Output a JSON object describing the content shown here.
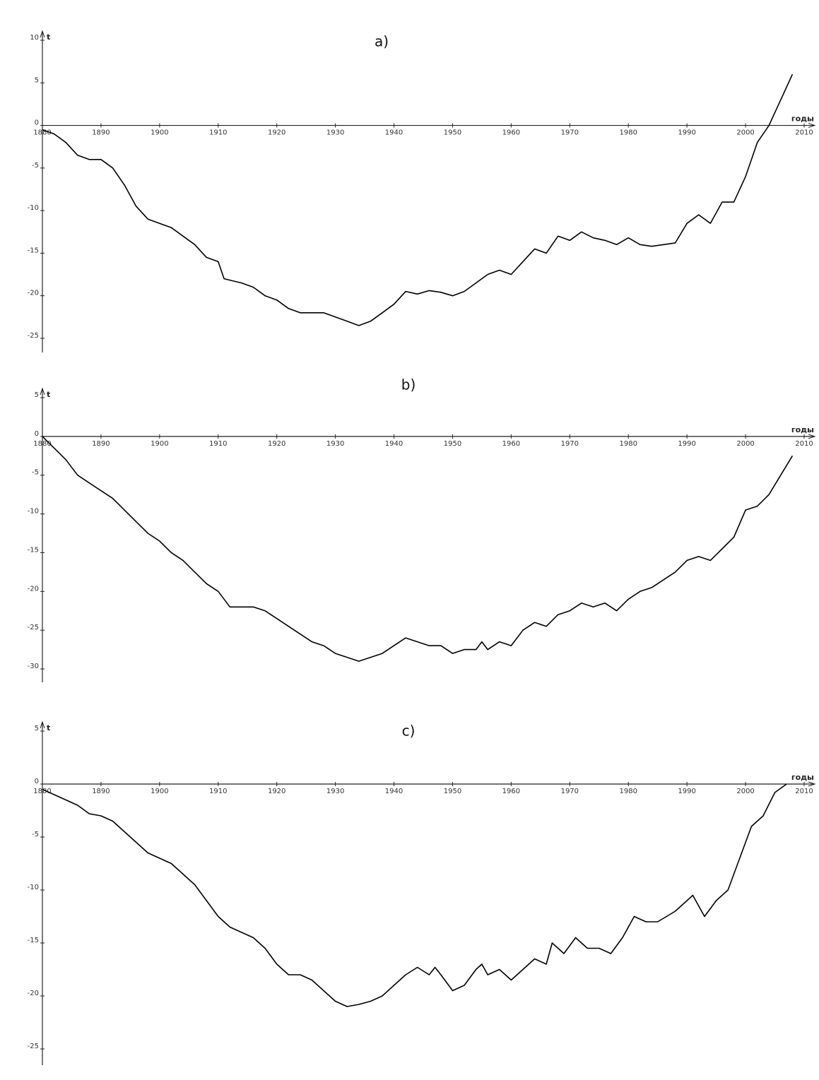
{
  "chart_data": [
    {
      "type": "line",
      "title": "a)",
      "xlabel": "годы",
      "ylabel": "t",
      "color": "#000000",
      "xlim": [
        1880,
        2010
      ],
      "xticks": [
        1880,
        1890,
        1900,
        1910,
        1920,
        1930,
        1940,
        1950,
        1960,
        1970,
        1980,
        1990,
        2000,
        2010
      ],
      "ylim": [
        -26,
        10
      ],
      "yticks": [
        10,
        5,
        0,
        -5,
        -10,
        -15,
        -20,
        -25
      ],
      "x": [
        1880,
        1882,
        1884,
        1886,
        1888,
        1890,
        1892,
        1894,
        1896,
        1898,
        1900,
        1902,
        1904,
        1906,
        1908,
        1910,
        1911,
        1914,
        1916,
        1918,
        1920,
        1922,
        1924,
        1926,
        1928,
        1930,
        1932,
        1934,
        1936,
        1938,
        1940,
        1942,
        1944,
        1946,
        1948,
        1950,
        1952,
        1954,
        1956,
        1958,
        1960,
        1962,
        1964,
        1966,
        1968,
        1970,
        1972,
        1974,
        1976,
        1978,
        1980,
        1982,
        1984,
        1986,
        1988,
        1990,
        1992,
        1994,
        1996,
        1998,
        2000,
        2002,
        2004,
        2006,
        2008
      ],
      "values": [
        -0.5,
        -1,
        -2,
        -3.5,
        -4,
        -4,
        -5,
        -7,
        -9.5,
        -11,
        -11.5,
        -12,
        -13,
        -14,
        -15.5,
        -16,
        -18,
        -18.5,
        -19,
        -20,
        -20.5,
        -21.5,
        -22,
        -22,
        -22,
        -22.5,
        -23,
        -23.5,
        -23,
        -22,
        -21,
        -19.5,
        -19.8,
        -19.4,
        -19.6,
        -20,
        -19.5,
        -18.5,
        -17.5,
        -17,
        -17.5,
        -16,
        -14.5,
        -15,
        -13,
        -13.5,
        -12.5,
        -13.2,
        -13.5,
        -14,
        -13.2,
        -14,
        -14.2,
        -14,
        -13.8,
        -11.5,
        -10.5,
        -11.5,
        -9,
        -9,
        -6,
        -2,
        0,
        3,
        6
      ]
    },
    {
      "type": "line",
      "title": "b)",
      "xlabel": "годы",
      "ylabel": "t",
      "color": "#000000",
      "xlim": [
        1880,
        2010
      ],
      "xticks": [
        1880,
        1890,
        1900,
        1910,
        1920,
        1930,
        1940,
        1950,
        1960,
        1970,
        1980,
        1990,
        2000,
        2010
      ],
      "ylim": [
        -31,
        5
      ],
      "yticks": [
        5,
        0,
        -5,
        -10,
        -15,
        -20,
        -25,
        -30
      ],
      "x": [
        1880,
        1882,
        1884,
        1886,
        1888,
        1890,
        1892,
        1894,
        1896,
        1898,
        1900,
        1902,
        1904,
        1906,
        1908,
        1910,
        1912,
        1914,
        1916,
        1918,
        1920,
        1922,
        1924,
        1926,
        1928,
        1930,
        1932,
        1934,
        1936,
        1938,
        1940,
        1942,
        1944,
        1946,
        1948,
        1950,
        1952,
        1954,
        1955,
        1956,
        1958,
        1960,
        1962,
        1964,
        1966,
        1968,
        1970,
        1972,
        1974,
        1976,
        1978,
        1980,
        1982,
        1984,
        1986,
        1988,
        1990,
        1992,
        1994,
        1996,
        1998,
        2000,
        2002,
        2004,
        2006,
        2008
      ],
      "values": [
        0,
        -1.5,
        -3,
        -5,
        -6,
        -7,
        -8,
        -9.5,
        -11,
        -12.5,
        -13.5,
        -15,
        -16,
        -17.5,
        -19,
        -20,
        -22,
        -22,
        -22,
        -22.5,
        -23.5,
        -24.5,
        -25.5,
        -26.5,
        -27,
        -28,
        -28.5,
        -29,
        -28.5,
        -28,
        -27,
        -26,
        -26.5,
        -27,
        -27,
        -28,
        -27.5,
        -27.5,
        -26.5,
        -27.5,
        -26.5,
        -27,
        -25,
        -24,
        -24.5,
        -23,
        -22.5,
        -21.5,
        -22,
        -21.5,
        -22.5,
        -21,
        -20,
        -19.5,
        -18.5,
        -17.5,
        -16,
        -15.5,
        -16,
        -14.5,
        -13,
        -9.5,
        -9,
        -7.5,
        -5,
        -2.5
      ]
    },
    {
      "type": "line",
      "title": "c)",
      "xlabel": "годы",
      "ylabel": "t",
      "color": "#000000",
      "xlim": [
        1880,
        2010
      ],
      "xticks": [
        1880,
        1890,
        1900,
        1910,
        1920,
        1930,
        1940,
        1950,
        1960,
        1970,
        1980,
        1990,
        2000,
        2010
      ],
      "ylim": [
        -26,
        5
      ],
      "yticks": [
        5,
        0,
        -5,
        -10,
        -15,
        -20,
        -25
      ],
      "x": [
        1880,
        1882,
        1884,
        1886,
        1888,
        1890,
        1892,
        1894,
        1896,
        1898,
        1900,
        1902,
        1904,
        1906,
        1908,
        1910,
        1912,
        1914,
        1916,
        1918,
        1920,
        1922,
        1924,
        1926,
        1928,
        1930,
        1932,
        1934,
        1936,
        1938,
        1940,
        1942,
        1944,
        1946,
        1947,
        1948,
        1950,
        1952,
        1954,
        1955,
        1956,
        1958,
        1960,
        1962,
        1964,
        1966,
        1967,
        1968,
        1969,
        1971,
        1973,
        1975,
        1977,
        1979,
        1981,
        1983,
        1985,
        1988,
        1990,
        1991,
        1993,
        1995,
        1997,
        1999,
        2001,
        2003,
        2005,
        2007
      ],
      "values": [
        -0.5,
        -1,
        -1.5,
        -2,
        -2.8,
        -3,
        -3.5,
        -4.5,
        -5.5,
        -6.5,
        -7,
        -7.5,
        -8.5,
        -9.5,
        -11,
        -12.5,
        -13.5,
        -14,
        -14.5,
        -15.5,
        -17,
        -18,
        -18,
        -18.5,
        -19.5,
        -20.5,
        -21,
        -20.8,
        -20.5,
        -20,
        -19,
        -18,
        -17.3,
        -18,
        -17.3,
        -18,
        -19.5,
        -19,
        -17.5,
        -17,
        -18,
        -17.5,
        -18.5,
        -17.5,
        -16.5,
        -17,
        -15,
        -15.5,
        -16,
        -14.5,
        -15.5,
        -15.5,
        -16,
        -14.5,
        -12.5,
        -13,
        -13,
        -12,
        -11,
        -10.5,
        -12.5,
        -11,
        -10,
        -7,
        -4,
        -3,
        -0.8,
        0
      ]
    }
  ]
}
